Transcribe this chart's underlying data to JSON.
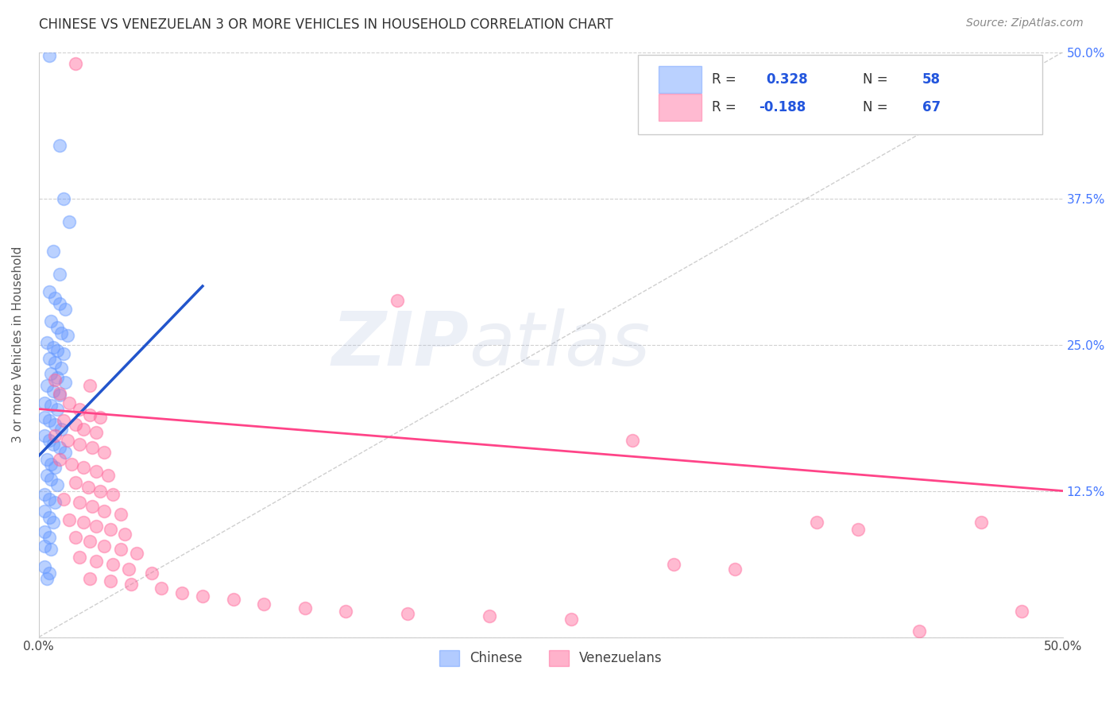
{
  "title": "CHINESE VS VENEZUELAN 3 OR MORE VEHICLES IN HOUSEHOLD CORRELATION CHART",
  "source": "Source: ZipAtlas.com",
  "ylabel": "3 or more Vehicles in Household",
  "xmin": 0.0,
  "xmax": 0.5,
  "ymin": 0.0,
  "ymax": 0.5,
  "xticks": [
    0.0,
    0.1,
    0.2,
    0.3,
    0.4,
    0.5
  ],
  "xtick_labels": [
    "0.0%",
    "",
    "",
    "",
    "",
    "50.0%"
  ],
  "yticks": [
    0.0,
    0.125,
    0.25,
    0.375,
    0.5
  ],
  "ytick_labels_left": [
    "",
    "",
    "",
    "",
    ""
  ],
  "ytick_labels_right": [
    "",
    "12.5%",
    "25.0%",
    "37.5%",
    "50.0%"
  ],
  "chinese_color": "#6699ff",
  "venezuelan_color": "#ff6699",
  "trend_blue": "#2255cc",
  "trend_pink": "#ff4488",
  "watermark_zip": "ZIP",
  "watermark_atlas": "atlas",
  "background_color": "#ffffff",
  "grid_color": "#cccccc",
  "chinese_scatter": [
    [
      0.005,
      0.497
    ],
    [
      0.01,
      0.42
    ],
    [
      0.012,
      0.375
    ],
    [
      0.015,
      0.355
    ],
    [
      0.007,
      0.33
    ],
    [
      0.01,
      0.31
    ],
    [
      0.005,
      0.295
    ],
    [
      0.008,
      0.29
    ],
    [
      0.01,
      0.285
    ],
    [
      0.013,
      0.28
    ],
    [
      0.006,
      0.27
    ],
    [
      0.009,
      0.265
    ],
    [
      0.011,
      0.26
    ],
    [
      0.014,
      0.258
    ],
    [
      0.004,
      0.252
    ],
    [
      0.007,
      0.248
    ],
    [
      0.009,
      0.245
    ],
    [
      0.012,
      0.242
    ],
    [
      0.005,
      0.238
    ],
    [
      0.008,
      0.235
    ],
    [
      0.011,
      0.23
    ],
    [
      0.006,
      0.225
    ],
    [
      0.009,
      0.222
    ],
    [
      0.013,
      0.218
    ],
    [
      0.004,
      0.215
    ],
    [
      0.007,
      0.21
    ],
    [
      0.01,
      0.207
    ],
    [
      0.003,
      0.2
    ],
    [
      0.006,
      0.198
    ],
    [
      0.009,
      0.195
    ],
    [
      0.003,
      0.188
    ],
    [
      0.005,
      0.185
    ],
    [
      0.008,
      0.182
    ],
    [
      0.011,
      0.178
    ],
    [
      0.003,
      0.172
    ],
    [
      0.005,
      0.168
    ],
    [
      0.007,
      0.165
    ],
    [
      0.01,
      0.162
    ],
    [
      0.013,
      0.158
    ],
    [
      0.004,
      0.152
    ],
    [
      0.006,
      0.148
    ],
    [
      0.008,
      0.145
    ],
    [
      0.004,
      0.138
    ],
    [
      0.006,
      0.135
    ],
    [
      0.009,
      0.13
    ],
    [
      0.003,
      0.122
    ],
    [
      0.005,
      0.118
    ],
    [
      0.008,
      0.115
    ],
    [
      0.003,
      0.108
    ],
    [
      0.005,
      0.102
    ],
    [
      0.007,
      0.098
    ],
    [
      0.003,
      0.09
    ],
    [
      0.005,
      0.085
    ],
    [
      0.003,
      0.078
    ],
    [
      0.006,
      0.075
    ],
    [
      0.003,
      0.06
    ],
    [
      0.005,
      0.055
    ],
    [
      0.004,
      0.05
    ]
  ],
  "venezuelan_scatter": [
    [
      0.018,
      0.49
    ],
    [
      0.008,
      0.22
    ],
    [
      0.025,
      0.215
    ],
    [
      0.01,
      0.208
    ],
    [
      0.015,
      0.2
    ],
    [
      0.02,
      0.195
    ],
    [
      0.025,
      0.19
    ],
    [
      0.03,
      0.188
    ],
    [
      0.012,
      0.185
    ],
    [
      0.018,
      0.182
    ],
    [
      0.022,
      0.178
    ],
    [
      0.028,
      0.175
    ],
    [
      0.008,
      0.172
    ],
    [
      0.014,
      0.168
    ],
    [
      0.02,
      0.165
    ],
    [
      0.026,
      0.162
    ],
    [
      0.032,
      0.158
    ],
    [
      0.01,
      0.152
    ],
    [
      0.016,
      0.148
    ],
    [
      0.022,
      0.145
    ],
    [
      0.028,
      0.142
    ],
    [
      0.034,
      0.138
    ],
    [
      0.018,
      0.132
    ],
    [
      0.024,
      0.128
    ],
    [
      0.03,
      0.125
    ],
    [
      0.036,
      0.122
    ],
    [
      0.012,
      0.118
    ],
    [
      0.02,
      0.115
    ],
    [
      0.026,
      0.112
    ],
    [
      0.032,
      0.108
    ],
    [
      0.04,
      0.105
    ],
    [
      0.015,
      0.1
    ],
    [
      0.022,
      0.098
    ],
    [
      0.028,
      0.095
    ],
    [
      0.035,
      0.092
    ],
    [
      0.042,
      0.088
    ],
    [
      0.018,
      0.085
    ],
    [
      0.025,
      0.082
    ],
    [
      0.032,
      0.078
    ],
    [
      0.04,
      0.075
    ],
    [
      0.048,
      0.072
    ],
    [
      0.02,
      0.068
    ],
    [
      0.028,
      0.065
    ],
    [
      0.036,
      0.062
    ],
    [
      0.044,
      0.058
    ],
    [
      0.055,
      0.055
    ],
    [
      0.025,
      0.05
    ],
    [
      0.035,
      0.048
    ],
    [
      0.045,
      0.045
    ],
    [
      0.06,
      0.042
    ],
    [
      0.07,
      0.038
    ],
    [
      0.08,
      0.035
    ],
    [
      0.095,
      0.032
    ],
    [
      0.11,
      0.028
    ],
    [
      0.13,
      0.025
    ],
    [
      0.15,
      0.022
    ],
    [
      0.18,
      0.02
    ],
    [
      0.22,
      0.018
    ],
    [
      0.26,
      0.015
    ],
    [
      0.31,
      0.062
    ],
    [
      0.34,
      0.058
    ],
    [
      0.38,
      0.098
    ],
    [
      0.4,
      0.092
    ],
    [
      0.43,
      0.005
    ],
    [
      0.46,
      0.098
    ],
    [
      0.48,
      0.022
    ],
    [
      0.29,
      0.168
    ],
    [
      0.175,
      0.288
    ]
  ],
  "chinese_trend_x": [
    0.0,
    0.08
  ],
  "chinese_trend_y": [
    0.155,
    0.3
  ],
  "venezuelan_trend_x": [
    0.0,
    0.5
  ],
  "venezuelan_trend_y": [
    0.195,
    0.125
  ]
}
